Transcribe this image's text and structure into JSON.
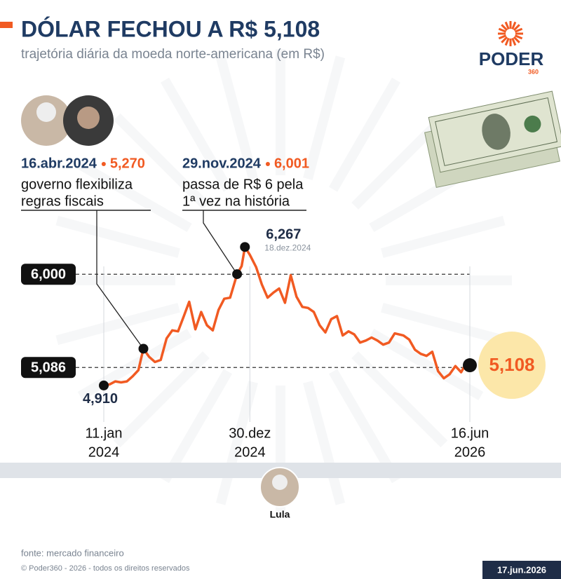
{
  "chart_data": {
    "type": "line",
    "title": "DÓLAR FECHOU A R$ 5,108",
    "subtitle": "trajetória diária da moeda norte-americana (em R$)",
    "color": "#f15a22",
    "x": [
      "2024-01-11",
      "2024-01-25",
      "2024-02-08",
      "2024-02-22",
      "2024-03-07",
      "2024-03-21",
      "2024-04-04",
      "2024-04-16",
      "2024-04-30",
      "2024-05-14",
      "2024-05-28",
      "2024-06-11",
      "2024-06-25",
      "2024-07-09",
      "2024-07-23",
      "2024-08-05",
      "2024-08-20",
      "2024-09-03",
      "2024-09-17",
      "2024-10-01",
      "2024-10-15",
      "2024-10-29",
      "2024-11-12",
      "2024-11-29",
      "2024-12-10",
      "2024-12-18",
      "2024-12-30",
      "2025-01-14",
      "2025-01-28",
      "2025-02-11",
      "2025-02-25",
      "2025-03-11",
      "2025-03-25",
      "2025-04-08",
      "2025-04-22",
      "2025-05-06",
      "2025-05-20",
      "2025-06-03",
      "2025-06-17",
      "2025-07-01",
      "2025-07-15",
      "2025-07-29",
      "2025-08-12",
      "2025-08-26",
      "2025-09-09",
      "2025-09-23",
      "2025-10-07",
      "2025-10-21",
      "2025-11-04",
      "2025-11-18",
      "2025-12-02",
      "2025-12-16",
      "2026-01-06",
      "2026-01-20",
      "2026-02-03",
      "2026-02-17",
      "2026-03-03",
      "2026-03-17",
      "2026-03-31",
      "2026-04-14",
      "2026-04-28",
      "2026-05-12",
      "2026-05-26",
      "2026-06-09",
      "2026-06-16"
    ],
    "values": [
      4.91,
      4.92,
      4.95,
      4.94,
      4.95,
      5.0,
      5.06,
      5.27,
      5.19,
      5.14,
      5.16,
      5.37,
      5.45,
      5.44,
      5.59,
      5.73,
      5.46,
      5.63,
      5.5,
      5.45,
      5.65,
      5.76,
      5.77,
      6.001,
      6.08,
      6.267,
      6.19,
      6.07,
      5.9,
      5.77,
      5.82,
      5.86,
      5.72,
      5.99,
      5.78,
      5.68,
      5.67,
      5.63,
      5.5,
      5.43,
      5.56,
      5.59,
      5.4,
      5.44,
      5.41,
      5.33,
      5.35,
      5.38,
      5.35,
      5.31,
      5.33,
      5.42,
      5.4,
      5.36,
      5.26,
      5.22,
      5.2,
      5.24,
      5.05,
      4.98,
      5.02,
      5.1,
      5.04,
      5.14,
      5.108
    ],
    "xlim": [
      "2024-01-11",
      "2026-06-16"
    ],
    "xticks": [
      {
        "value": "2024-01-11",
        "label": [
          "11.jan",
          "2024"
        ]
      },
      {
        "value": "2024-12-30",
        "label": [
          "30.dez",
          "2024"
        ]
      },
      {
        "value": "2026-06-16",
        "label": [
          "16.jun",
          "2026"
        ]
      }
    ],
    "ylim": [
      4.6,
      6.4
    ],
    "yticks": [
      {
        "value": 6,
        "label": "6,000"
      },
      {
        "value": 5.086,
        "label": "5,086"
      }
    ],
    "point_labels": [
      {
        "x": "2024-01-11",
        "label": "4,910"
      },
      {
        "x": "2024-12-18",
        "label": "6,267",
        "date_label": "18.dez.2024"
      },
      {
        "x": "2026-06-16",
        "label": "5,108"
      }
    ],
    "events": [
      {
        "x": "2024-04-16",
        "date_label": "16.abr.2024",
        "value_label": "5,270",
        "text": [
          "governo flexibiliza",
          "regras fiscais"
        ]
      },
      {
        "x": "2024-11-29",
        "date_label": "29.nov.2024",
        "value_label": "6,001",
        "text": [
          "passa de R$ 6 pela",
          "1ª vez na história"
        ]
      }
    ]
  },
  "logo": {
    "name": "PODER",
    "sub": "360"
  },
  "president": "Lula",
  "source": "fonte: mercado financeiro",
  "copyright": "© Poder360 - 2026 - todos os direitos reservados",
  "date": "17.jun.2026"
}
